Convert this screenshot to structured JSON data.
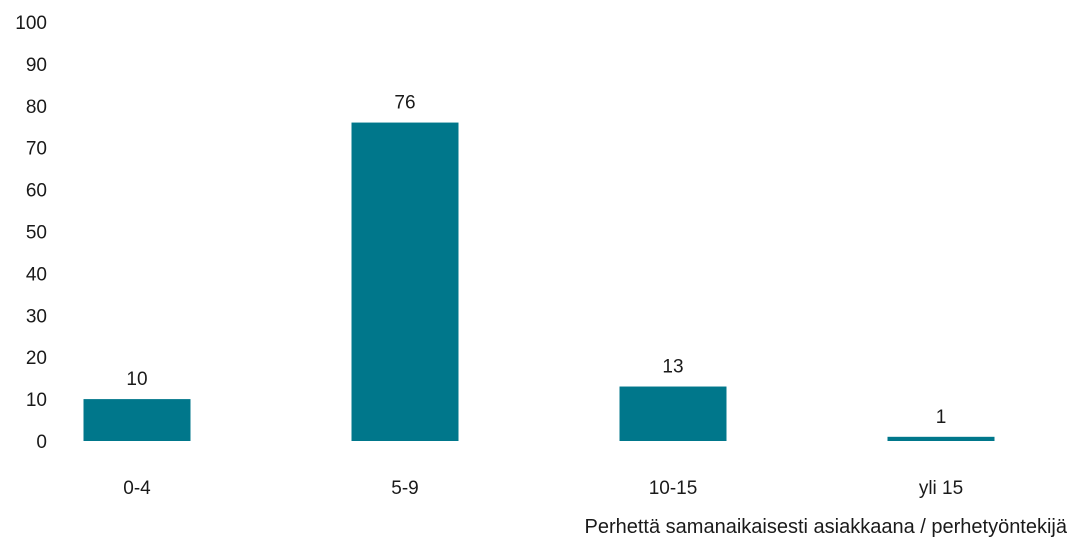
{
  "chart_data": {
    "type": "bar",
    "categories": [
      "0-4",
      "5-9",
      "10-15",
      "yli 15"
    ],
    "values": [
      10,
      76,
      13,
      1
    ],
    "data_labels": [
      "10",
      "76",
      "13",
      "1"
    ],
    "title": "",
    "xlabel": "Perhettä samanaikaisesti asiakkaana / perhetyöntekijä",
    "ylabel": "",
    "ylim": [
      0,
      100
    ],
    "yticks": [
      "0",
      "10",
      "20",
      "30",
      "40",
      "50",
      "60",
      "70",
      "80",
      "90",
      "100"
    ],
    "grid": false,
    "legend": "none",
    "bar_color": "#00778b"
  }
}
